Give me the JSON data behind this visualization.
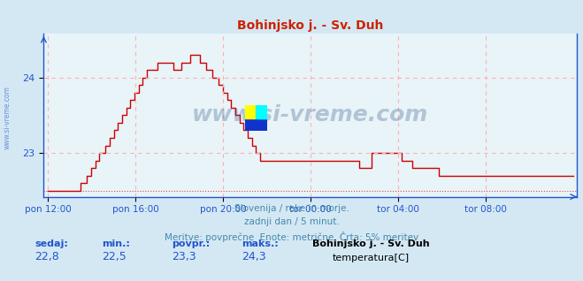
{
  "title": "Bohinjsko j. - Sv. Duh",
  "bg_color": "#d4e8f4",
  "plot_bg_color": "#e8f4f8",
  "grid_color": "#ffb0b0",
  "line_color": "#cc0000",
  "axis_color": "#2255cc",
  "title_color": "#cc2200",
  "watermark": "www.si-vreme.com",
  "watermark_color": "#335588",
  "footer_line1": "Slovenija / reke in morje.",
  "footer_line2": "zadnji dan / 5 minut.",
  "footer_line3": "Meritve: povprečne  Enote: metrične  Črta: 5% meritev",
  "footer_color": "#4488aa",
  "stats_labels": [
    "sedaj:",
    "min.:",
    "povpr.:",
    "maks.:"
  ],
  "stats_values": [
    "22,8",
    "22,5",
    "23,3",
    "24,3"
  ],
  "legend_station": "Bohinjsko j. - Sv. Duh",
  "legend_param": "temperatura[C]",
  "legend_color": "#cc0000",
  "x_tick_labels": [
    "pon 12:00",
    "pon 16:00",
    "pon 20:00",
    "tor 00:00",
    "tor 04:00",
    "tor 08:00"
  ],
  "y_ticks": [
    23,
    24
  ],
  "ylim_min": 22.42,
  "ylim_max": 24.58,
  "n_points": 288,
  "temperature_data": [
    22.5,
    22.5,
    22.5,
    22.5,
    22.5,
    22.5,
    22.5,
    22.5,
    22.5,
    22.5,
    22.5,
    22.5,
    22.5,
    22.5,
    22.5,
    22.5,
    22.6,
    22.6,
    22.6,
    22.7,
    22.7,
    22.8,
    22.8,
    22.9,
    22.9,
    23.0,
    23.0,
    23.0,
    23.1,
    23.1,
    23.2,
    23.2,
    23.3,
    23.3,
    23.4,
    23.4,
    23.5,
    23.5,
    23.6,
    23.6,
    23.7,
    23.7,
    23.8,
    23.8,
    23.9,
    23.9,
    24.0,
    24.0,
    24.1,
    24.1,
    24.1,
    24.1,
    24.1,
    24.2,
    24.2,
    24.2,
    24.2,
    24.2,
    24.2,
    24.2,
    24.2,
    24.1,
    24.1,
    24.1,
    24.1,
    24.2,
    24.2,
    24.2,
    24.2,
    24.3,
    24.3,
    24.3,
    24.3,
    24.3,
    24.2,
    24.2,
    24.2,
    24.1,
    24.1,
    24.1,
    24.0,
    24.0,
    24.0,
    23.9,
    23.9,
    23.8,
    23.8,
    23.7,
    23.7,
    23.6,
    23.6,
    23.5,
    23.5,
    23.4,
    23.4,
    23.3,
    23.3,
    23.2,
    23.2,
    23.1,
    23.1,
    23.0,
    23.0,
    22.9,
    22.9,
    22.9,
    22.9,
    22.9,
    22.9,
    22.9,
    22.9,
    22.9,
    22.9,
    22.9,
    22.9,
    22.9,
    22.9,
    22.9,
    22.9,
    22.9,
    22.9,
    22.9,
    22.9,
    22.9,
    22.9,
    22.9,
    22.9,
    22.9,
    22.9,
    22.9,
    22.9,
    22.9,
    22.9,
    22.9,
    22.9,
    22.9,
    22.9,
    22.9,
    22.9,
    22.9,
    22.9,
    22.9,
    22.9,
    22.9,
    22.9,
    22.9,
    22.9,
    22.9,
    22.9,
    22.9,
    22.9,
    22.8,
    22.8,
    22.8,
    22.8,
    22.8,
    22.8,
    23.0,
    23.0,
    23.0,
    23.0,
    23.0,
    23.0,
    23.0,
    23.0,
    23.0,
    23.0,
    23.0,
    23.0,
    23.0,
    23.0,
    23.0,
    22.9,
    22.9,
    22.9,
    22.9,
    22.9,
    22.8,
    22.8,
    22.8,
    22.8,
    22.8,
    22.8,
    22.8,
    22.8,
    22.8,
    22.8,
    22.8,
    22.8,
    22.8,
    22.7,
    22.7,
    22.7,
    22.7,
    22.7,
    22.7,
    22.7,
    22.7,
    22.7,
    22.7,
    22.7,
    22.7,
    22.7,
    22.7,
    22.7,
    22.7,
    22.7,
    22.7,
    22.7,
    22.7,
    22.7,
    22.7,
    22.7,
    22.7,
    22.7,
    22.7,
    22.7,
    22.7,
    22.7,
    22.7,
    22.7,
    22.7,
    22.7,
    22.7,
    22.7,
    22.7,
    22.7,
    22.7,
    22.7,
    22.7,
    22.7,
    22.7,
    22.7,
    22.7,
    22.7,
    22.7,
    22.7,
    22.7,
    22.7,
    22.7,
    22.7,
    22.7,
    22.7,
    22.7,
    22.7,
    22.7,
    22.7,
    22.7,
    22.7,
    22.7,
    22.7,
    22.7,
    22.7,
    22.7,
    22.7,
    22.7
  ]
}
